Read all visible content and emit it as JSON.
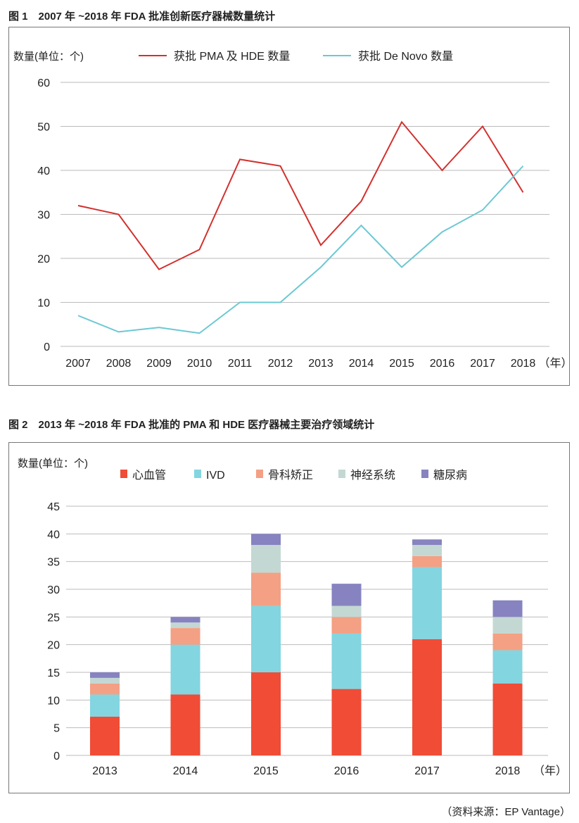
{
  "figure1": {
    "title": "图 1　2007 年 ~2018 年 FDA 批准创新医疗器械数量统计"
  },
  "figure2": {
    "title": "图 2　2013 年 ~2018 年 FDA 批准的 PMA 和 HDE 医疗器械主要治疗领域统计"
  },
  "source": "（资料来源：EP Vantage）",
  "chart_data": [
    {
      "type": "line",
      "ylabel": "数量(单位：个)",
      "xlabel": "（年）",
      "ylim": [
        0,
        60
      ],
      "yticks": [
        0,
        10,
        20,
        30,
        40,
        50,
        60
      ],
      "grid": true,
      "legend": "top",
      "x": [
        "2007",
        "2008",
        "2009",
        "2010",
        "2011",
        "2012",
        "2013",
        "2014",
        "2015",
        "2016",
        "2017",
        "2018"
      ],
      "series": [
        {
          "name": "获批 PMA 及 HDE 数量",
          "color": "#d2312f",
          "values": [
            32,
            30,
            17.5,
            22,
            42.5,
            41,
            23,
            33,
            51,
            40,
            50,
            35
          ]
        },
        {
          "name": "获批 De Novo 数量",
          "color": "#6cc8d3",
          "values": [
            7,
            3.3,
            4.3,
            3,
            10,
            10,
            18,
            27.5,
            18,
            26,
            31,
            41
          ]
        }
      ]
    },
    {
      "type": "bar",
      "stacked": true,
      "ylabel": "数量(单位：个)",
      "xlabel": "（年）",
      "ylim": [
        0,
        45
      ],
      "yticks": [
        0,
        5,
        10,
        15,
        20,
        25,
        30,
        35,
        40,
        45
      ],
      "grid": true,
      "legend": "top",
      "categories": [
        "2013",
        "2014",
        "2015",
        "2016",
        "2017",
        "2018"
      ],
      "series": [
        {
          "name": "心血管",
          "color": "#f04c36",
          "values": [
            7,
            11,
            15,
            12,
            21,
            13
          ]
        },
        {
          "name": "IVD",
          "color": "#83d5e0",
          "values": [
            4,
            9,
            12,
            10,
            13,
            6
          ]
        },
        {
          "name": "骨科矫正",
          "color": "#f4a084",
          "values": [
            2,
            3,
            6,
            3,
            2,
            3
          ]
        },
        {
          "name": "神经系统",
          "color": "#c3d8d3",
          "values": [
            1,
            1,
            5,
            2,
            2,
            3
          ]
        },
        {
          "name": "糖尿病",
          "color": "#8783c0",
          "values": [
            1,
            1,
            2,
            4,
            1,
            3
          ]
        }
      ]
    }
  ]
}
